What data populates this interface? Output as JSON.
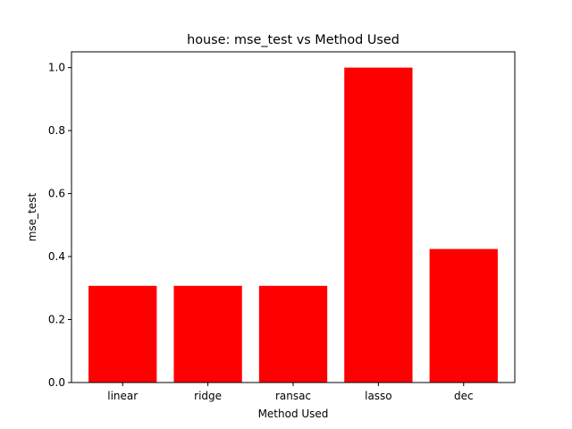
{
  "chart_data": {
    "type": "bar",
    "title": "house: mse_test vs Method Used",
    "xlabel": "Method Used",
    "ylabel": "mse_test",
    "categories": [
      "linear",
      "ridge",
      "ransac",
      "lasso",
      "dec"
    ],
    "values": [
      0.307,
      0.307,
      0.307,
      1.0,
      0.424
    ],
    "ylim": [
      0,
      1.05
    ],
    "yticks": [
      0.0,
      0.2,
      0.4,
      0.6,
      0.8,
      1.0
    ],
    "ytick_labels": [
      "0.0",
      "0.2",
      "0.4",
      "0.6",
      "0.8",
      "1.0"
    ],
    "bar_color": "#ff0000",
    "grid": false,
    "legend": "none"
  }
}
